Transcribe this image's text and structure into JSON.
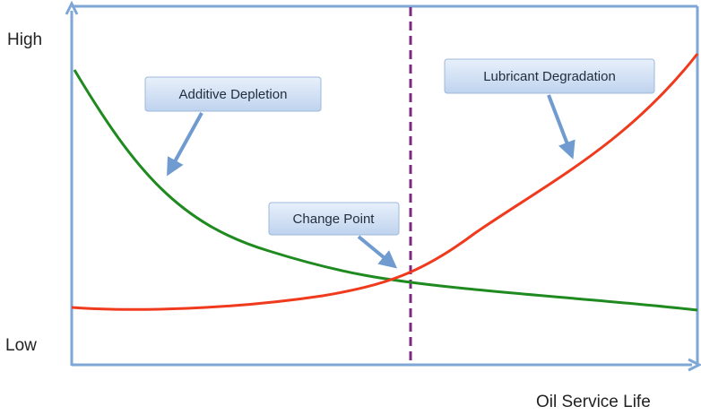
{
  "axes": {
    "y_high": "High",
    "y_low": "Low",
    "x_label": "Oil Service Life"
  },
  "callouts": [
    {
      "label": "Additive Depletion"
    },
    {
      "label": "Lubricant Degradation"
    },
    {
      "label": "Change Point"
    }
  ]
}
